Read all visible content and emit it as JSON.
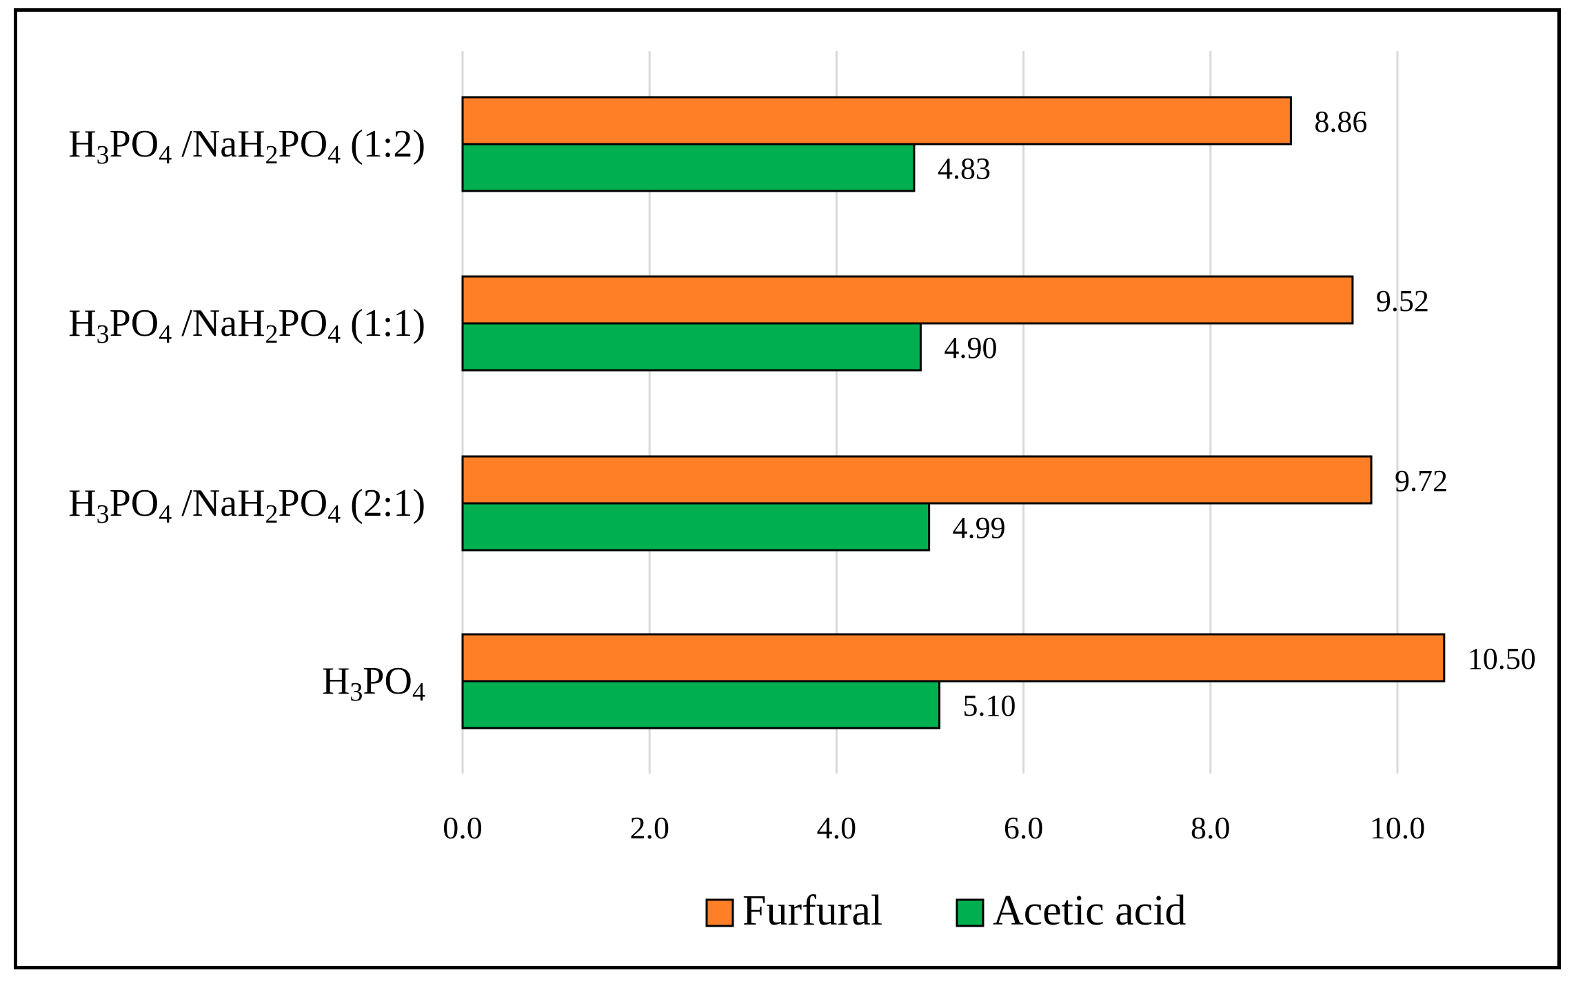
{
  "chart_data": {
    "type": "bar",
    "orientation": "horizontal",
    "title": "",
    "xlabel": "",
    "ylabel": "",
    "xlim": [
      0,
      10.5
    ],
    "x_ticks": [
      "0.0",
      "2.0",
      "4.0",
      "6.0",
      "8.0",
      "10.0"
    ],
    "x_tick_values": [
      0,
      2,
      4,
      6,
      8,
      10
    ],
    "grid": "vertical",
    "categories": [
      "H3PO4 /NaH2PO4 (1:2)",
      "H3PO4 /NaH2PO4 (1:1)",
      "H3PO4 /NaH2PO4 (2:1)",
      "H3PO4"
    ],
    "category_parts": [
      [
        [
          "H",
          ""
        ],
        [
          "3",
          "sub"
        ],
        [
          "PO",
          ""
        ],
        [
          "4",
          "sub"
        ],
        [
          " /NaH",
          ""
        ],
        [
          "2",
          "sub"
        ],
        [
          "PO",
          ""
        ],
        [
          "4",
          "sub"
        ],
        [
          " (1:2)",
          ""
        ]
      ],
      [
        [
          "H",
          ""
        ],
        [
          "3",
          "sub"
        ],
        [
          "PO",
          ""
        ],
        [
          "4",
          "sub"
        ],
        [
          " /NaH",
          ""
        ],
        [
          "2",
          "sub"
        ],
        [
          "PO",
          ""
        ],
        [
          "4",
          "sub"
        ],
        [
          " (1:1)",
          ""
        ]
      ],
      [
        [
          "H",
          ""
        ],
        [
          "3",
          "sub"
        ],
        [
          "PO",
          ""
        ],
        [
          "4",
          "sub"
        ],
        [
          " /NaH",
          ""
        ],
        [
          "2",
          "sub"
        ],
        [
          "PO",
          ""
        ],
        [
          "4",
          "sub"
        ],
        [
          " (2:1)",
          ""
        ]
      ],
      [
        [
          "H",
          ""
        ],
        [
          "3",
          "sub"
        ],
        [
          "PO",
          ""
        ],
        [
          "4",
          "sub"
        ]
      ]
    ],
    "series": [
      {
        "name": "Furfural",
        "color": "#FF7F27",
        "values": [
          8.86,
          9.52,
          9.72,
          10.5
        ],
        "labels": [
          "8.86",
          "9.52",
          "9.72",
          "10.50"
        ]
      },
      {
        "name": "Acetic acid",
        "color": "#00B050",
        "values": [
          4.83,
          4.9,
          4.99,
          5.1
        ],
        "labels": [
          "4.83",
          "4.90",
          "4.99",
          "5.10"
        ]
      }
    ],
    "legend": {
      "position": "bottom",
      "items": [
        "Furfural",
        "Acetic acid"
      ]
    },
    "grid_color": "#D9D9D9",
    "bar_edge_color": "#000000"
  }
}
